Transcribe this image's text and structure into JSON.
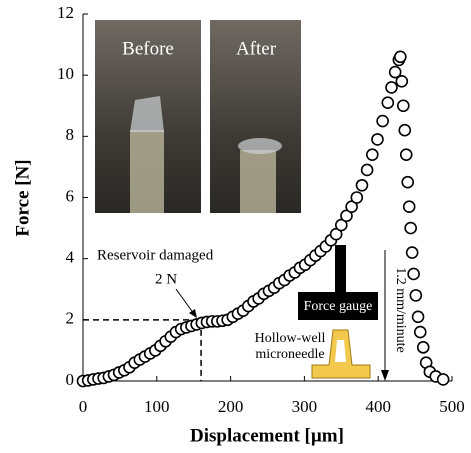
{
  "chart_data": {
    "type": "scatter",
    "x_label": "Displacement [µm]",
    "y_label": "Force [N]",
    "xlim": [
      0,
      500
    ],
    "xticks": [
      0,
      100,
      200,
      300,
      400,
      500
    ],
    "ylim": [
      0,
      12
    ],
    "yticks": [
      0,
      2,
      4,
      6,
      8,
      10,
      12
    ],
    "marker_color": "#000000",
    "x": [
      0,
      7,
      14,
      21,
      28,
      35,
      42,
      49,
      56,
      63,
      70,
      77,
      84,
      91,
      98,
      105,
      112,
      119,
      126,
      133,
      140,
      147,
      154,
      161,
      168,
      175,
      182,
      189,
      196,
      203,
      210,
      217,
      224,
      231,
      238,
      245,
      252,
      259,
      266,
      273,
      280,
      287,
      294,
      301,
      308,
      315,
      322,
      329,
      336,
      343,
      350,
      357,
      364,
      371,
      378,
      385,
      392,
      399,
      406,
      413,
      418,
      423,
      428,
      430,
      432,
      434,
      436,
      438,
      440,
      442,
      444,
      446,
      448,
      451,
      454,
      457,
      461,
      465,
      470,
      478,
      488
    ],
    "values": [
      0,
      0.02,
      0.05,
      0.08,
      0.1,
      0.15,
      0.2,
      0.28,
      0.35,
      0.45,
      0.6,
      0.7,
      0.8,
      0.9,
      1.0,
      1.15,
      1.3,
      1.45,
      1.6,
      1.7,
      1.75,
      1.8,
      1.85,
      1.9,
      1.93,
      1.95,
      1.95,
      1.97,
      2.0,
      2.1,
      2.2,
      2.3,
      2.45,
      2.6,
      2.7,
      2.85,
      2.95,
      3.05,
      3.2,
      3.3,
      3.45,
      3.55,
      3.7,
      3.8,
      3.95,
      4.1,
      4.25,
      4.4,
      4.6,
      4.8,
      5.1,
      5.4,
      5.7,
      6.0,
      6.4,
      6.9,
      7.4,
      7.9,
      8.5,
      9.1,
      9.6,
      10.1,
      10.5,
      10.6,
      9.8,
      9.0,
      8.2,
      7.4,
      6.5,
      5.7,
      5.0,
      4.2,
      3.5,
      2.8,
      2.1,
      1.6,
      1.1,
      0.6,
      0.3,
      0.15,
      0.05
    ],
    "guide": {
      "x": 160,
      "y": 2
    },
    "annotations": {
      "damage": "Reservoir damaged",
      "force": "2 N",
      "speed": "1.2 mm/minute",
      "gauge": "Force gauge",
      "needle_1": "Hollow-well",
      "needle_2": "microneedle"
    },
    "photos": [
      "Before",
      "After"
    ]
  }
}
